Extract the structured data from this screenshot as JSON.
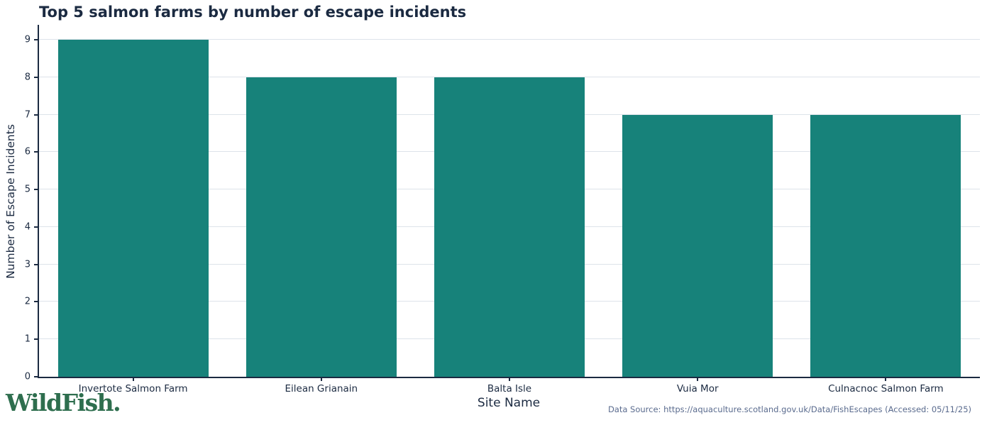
{
  "chart_data": {
    "type": "bar",
    "title": "Top 5 salmon farms by number of escape incidents",
    "categories": [
      "Invertote Salmon Farm",
      "Eilean Grianain",
      "Balta Isle",
      "Vuia Mor",
      "Culnacnoc Salmon Farm"
    ],
    "values": [
      9,
      8,
      8,
      7,
      7
    ],
    "xlabel": "Site Name",
    "ylabel": "Number of Escape Incidents",
    "ylim": [
      0,
      9.4
    ],
    "yticks": [
      0,
      1,
      2,
      3,
      4,
      5,
      6,
      7,
      8,
      9
    ],
    "grid": true,
    "legend": false,
    "bar_width_fraction": 0.8
  },
  "colors": {
    "bar": "#17827a",
    "axis_text": "#1b2a41",
    "gridline": "#dde3ea",
    "logo_green": "#2e6e4e",
    "source_text": "#5a6b8e"
  },
  "footer": {
    "logo_text": "WildFish.",
    "source_text": "Data Source: https://aquaculture.scotland.gov.uk/Data/FishEscapes (Accessed: 05/11/25)"
  }
}
